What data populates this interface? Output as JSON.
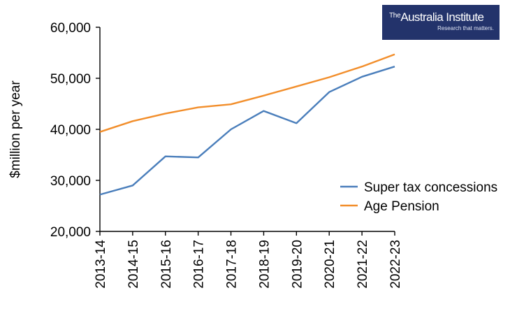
{
  "logo": {
    "prefix": "The",
    "name": "Australia Institute",
    "tagline": "Research that matters."
  },
  "chart_data": {
    "type": "line",
    "title": "",
    "xlabel": "",
    "ylabel": "$million per year",
    "categories": [
      "2013-14",
      "2014-15",
      "2015-16",
      "2016-17",
      "2017-18",
      "2018-19",
      "2019-20",
      "2020-21",
      "2021-22",
      "2022-23"
    ],
    "ylim": [
      20000,
      60000
    ],
    "yticks": [
      20000,
      30000,
      40000,
      50000,
      60000
    ],
    "ytick_labels": [
      "20,000",
      "30,000",
      "40,000",
      "50,000",
      "60,000"
    ],
    "grid": false,
    "legend_position": "right",
    "series": [
      {
        "name": "Super tax concessions",
        "color": "#4a7ebb",
        "values": [
          27200,
          29000,
          34700,
          34500,
          40000,
          43600,
          41200,
          47300,
          50300,
          52300
        ]
      },
      {
        "name": "Age Pension",
        "color": "#f28e2b",
        "values": [
          39500,
          41600,
          43100,
          44300,
          44900,
          46600,
          48400,
          50200,
          52300,
          54700
        ]
      }
    ]
  }
}
